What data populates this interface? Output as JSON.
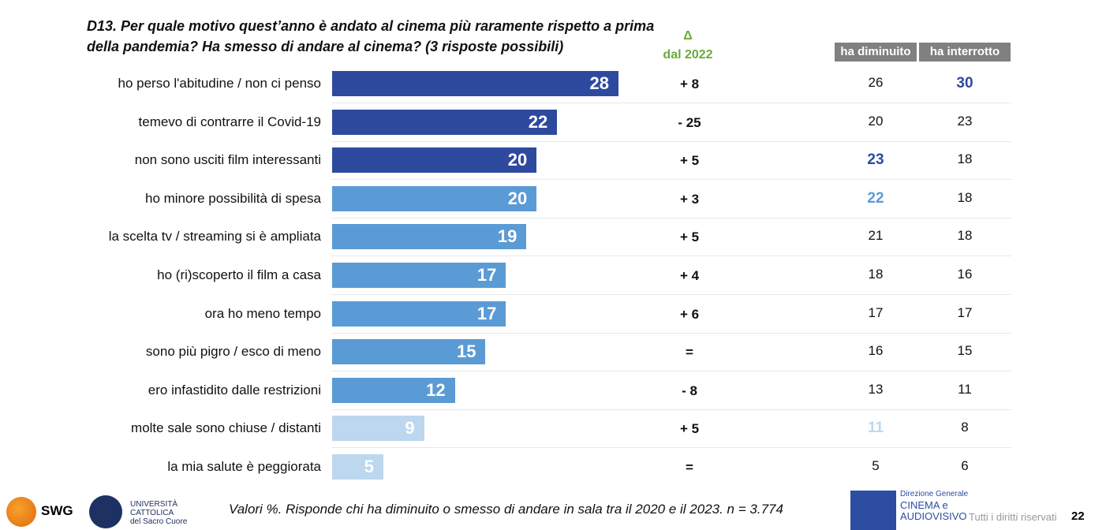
{
  "chart_data": {
    "type": "bar",
    "orientation": "horizontal",
    "title": "D13. Per quale motivo quest’anno è andato al cinema più raramente rispetto a prima della pandemia? Ha smesso di andare al cinema? (3 risposte possibili)",
    "categories": [
      "ho perso l'abitudine / non ci penso",
      "temevo di contrarre il Covid-19",
      "non sono usciti film interessanti",
      "ho minore possibilità di spesa",
      "la scelta tv / streaming si è ampliata",
      "ho (ri)scoperto il film a casa",
      "ora ho meno tempo",
      "sono più pigro / esco di meno",
      "ero infastidito dalle restrizioni",
      "molte sale sono chiuse / distanti",
      "la mia salute è peggiorata"
    ],
    "values": [
      28,
      22,
      20,
      20,
      19,
      17,
      17,
      15,
      12,
      9,
      5
    ],
    "value_labels": [
      "28",
      "22",
      "20",
      "20",
      "19",
      "17",
      "17",
      "15",
      "12",
      "9",
      "5"
    ],
    "bar_colors": [
      "#2E4A9E",
      "#2E4A9E",
      "#2E4A9E",
      "#5B9BD5",
      "#5B9BD5",
      "#5B9BD5",
      "#5B9BD5",
      "#5B9BD5",
      "#5B9BD5",
      "#BDD7EE",
      "#BDD7EE"
    ],
    "delta_header": [
      "Δ",
      "dal 2022"
    ],
    "delta": [
      "+ 8",
      "- 25",
      "+ 5",
      "+ 3",
      "+ 5",
      "+ 4",
      "+ 6",
      "=",
      "- 8",
      "+ 5",
      "="
    ],
    "columns": [
      "ha diminuito",
      "ha interrotto"
    ],
    "ha_diminuito": [
      "26",
      "20",
      "23",
      "22",
      "21",
      "18",
      "17",
      "16",
      "13",
      "11",
      "5"
    ],
    "ha_interrotto": [
      "30",
      "23",
      "18",
      "18",
      "18",
      "16",
      "17",
      "15",
      "11",
      "8",
      "6"
    ],
    "highlight_diminuito": [
      null,
      null,
      "#2E4A9E",
      "#5B9BD5",
      null,
      null,
      null,
      null,
      null,
      "#BDD7EE",
      null
    ],
    "highlight_interrotto": [
      "#2E4A9E",
      null,
      null,
      null,
      null,
      null,
      null,
      null,
      null,
      null,
      null
    ],
    "xlim": [
      0,
      28
    ]
  },
  "footer": {
    "note": "Valori %. Risponde chi ha diminuito o smesso di andare in sala tra il 2020 e il 2023. n = 3.774",
    "rights": "Tutti i diritti riservati",
    "page": "22",
    "swg": "SWG",
    "ucsc": [
      "UNIVERSITÀ",
      "CATTOLICA",
      "del Sacro Cuore"
    ],
    "mic": [
      "Direzione Generale",
      "CINEMA e",
      "AUDIOVISIVO"
    ]
  }
}
